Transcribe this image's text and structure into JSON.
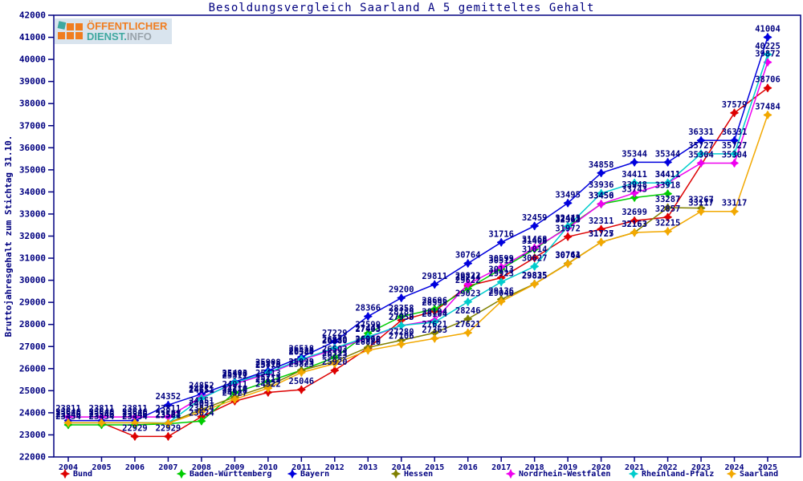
{
  "logo": {
    "line1": "ÖFFENTLICHER",
    "line2_teal": "DIENST.",
    "line2_gray": "INFO"
  },
  "chart_data": {
    "type": "line",
    "title": "Besoldungsvergleich Saarland A 5 gemitteltes Gehalt",
    "ylabel": "Bruttojahresgehalt zum Stichtag 31.10.",
    "xlabel": "",
    "x": [
      2004,
      2005,
      2006,
      2007,
      2008,
      2009,
      2010,
      2011,
      2012,
      2013,
      2014,
      2015,
      2016,
      2017,
      2018,
      2019,
      2020,
      2021,
      2022,
      2023,
      2024,
      2025
    ],
    "ylim": [
      22000,
      42000
    ],
    "ytick_step": 1000,
    "grid": false,
    "legend_position": "bottom",
    "axis_color": "#000080",
    "series": [
      {
        "name": "Bund",
        "color": "#dd0000",
        "values": [
          23546,
          23546,
          22929,
          22929,
          23824,
          24527,
          24922,
          25046,
          25920,
          26926,
          28189,
          28598,
          29744,
          30113,
          31014,
          31972,
          32311,
          32699,
          32857,
          null,
          37579,
          38706
        ]
      },
      {
        "name": "Baden-Württemberg",
        "color": "#00cc00",
        "values": [
          23454,
          23454,
          23454,
          23501,
          23624,
          24911,
          25413,
          25929,
          26503,
          27599,
          28358,
          28696,
          29622,
          30513,
          31408,
          32413,
          33450,
          33743,
          33918,
          null,
          null,
          null
        ]
      },
      {
        "name": "Bayern",
        "color": "#0000dd",
        "values": [
          23646,
          23646,
          23646,
          24352,
          24852,
          25403,
          25908,
          26518,
          27229,
          28366,
          29200,
          29811,
          30764,
          31716,
          32459,
          33495,
          34858,
          35344,
          35344,
          36331,
          36331,
          41004
        ]
      },
      {
        "name": "Hessen",
        "color": "#808000",
        "values": [
          23546,
          23546,
          23546,
          23537,
          24151,
          24710,
          25213,
          25923,
          26323,
          26960,
          27280,
          27621,
          28246,
          29136,
          29835,
          30761,
          31727,
          32163,
          33287,
          33267,
          null,
          null
        ]
      },
      {
        "name": "Nordrhein-Westfalen",
        "color": "#ee00ee",
        "values": [
          23811,
          23811,
          23811,
          23811,
          24711,
          25311,
          25770,
          26380,
          26880,
          27403,
          27950,
          28194,
          29822,
          30599,
          31468,
          32363,
          33456,
          33948,
          34411,
          35304,
          35304,
          39872
        ]
      },
      {
        "name": "Rheinland-Pfalz",
        "color": "#00cccc",
        "values": [
          23546,
          23546,
          23546,
          23537,
          24651,
          25370,
          25813,
          26423,
          26930,
          27443,
          27953,
          28104,
          29023,
          29923,
          30627,
          32443,
          33936,
          34411,
          34411,
          35727,
          35727,
          40225
        ]
      },
      {
        "name": "Saarland",
        "color": "#f2a800",
        "values": [
          23546,
          23546,
          23546,
          23524,
          24051,
          24610,
          25113,
          25823,
          26223,
          26826,
          27106,
          27363,
          27621,
          29040,
          29825,
          30744,
          31725,
          32163,
          32215,
          33117,
          33117,
          37484
        ]
      }
    ]
  }
}
